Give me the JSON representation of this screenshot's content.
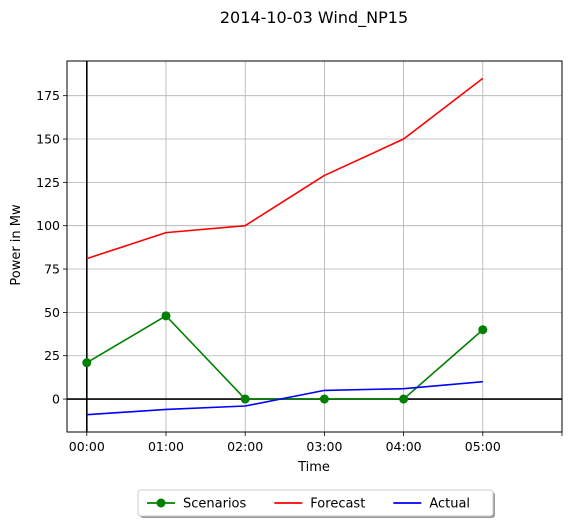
{
  "chart_data": {
    "type": "line",
    "title": "2014-10-03 Wind_NP15",
    "xlabel": "Time",
    "ylabel": "Power in Mw",
    "categories": [
      "00:00",
      "01:00",
      "02:00",
      "03:00",
      "04:00",
      "05:00"
    ],
    "xlim": [
      -0.25,
      6
    ],
    "ylim": [
      -19,
      195
    ],
    "yticks": [
      0,
      25,
      50,
      75,
      100,
      125,
      150,
      175
    ],
    "grid": true,
    "legend_position": "bottom-center",
    "series": [
      {
        "name": "Scenarios",
        "color": "#008000",
        "marker": "circle",
        "values": [
          21,
          48,
          0,
          0,
          0,
          40
        ]
      },
      {
        "name": "Forecast",
        "color": "#ff0000",
        "marker": "none",
        "values": [
          81,
          96,
          100,
          129,
          150,
          185
        ]
      },
      {
        "name": "Actual",
        "color": "#0000ff",
        "marker": "none",
        "values": [
          -9,
          -6,
          -4,
          5,
          6,
          10
        ]
      }
    ]
  }
}
